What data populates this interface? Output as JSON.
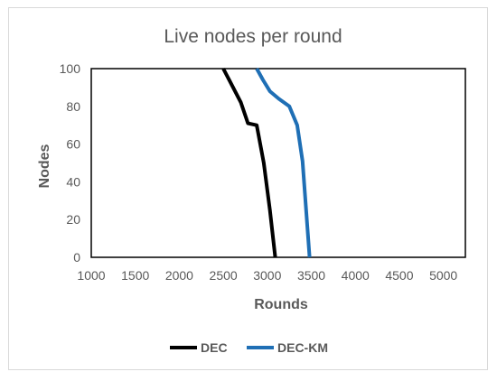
{
  "chart_data": {
    "type": "line",
    "title": "Live nodes per round",
    "xlabel": "Rounds",
    "ylabel": "Nodes",
    "xlim": [
      1000,
      5250
    ],
    "ylim": [
      0,
      100
    ],
    "xticks": [
      1000,
      1500,
      2000,
      2500,
      3000,
      3500,
      4000,
      4500,
      5000
    ],
    "yticks": [
      0,
      20,
      40,
      60,
      80,
      100
    ],
    "legend_position": "bottom",
    "series": [
      {
        "name": "DEC",
        "color": "#000000",
        "x": [
          2500,
          2600,
          2700,
          2780,
          2880,
          2960,
          3030,
          3090
        ],
        "y": [
          100,
          91,
          82,
          71,
          70,
          50,
          25,
          0
        ]
      },
      {
        "name": "DEC-KM",
        "color": "#1f6fb5",
        "x": [
          2880,
          2950,
          3030,
          3130,
          3250,
          3340,
          3400,
          3480
        ],
        "y": [
          100,
          94,
          88,
          84,
          80,
          70,
          51,
          0
        ]
      }
    ]
  }
}
